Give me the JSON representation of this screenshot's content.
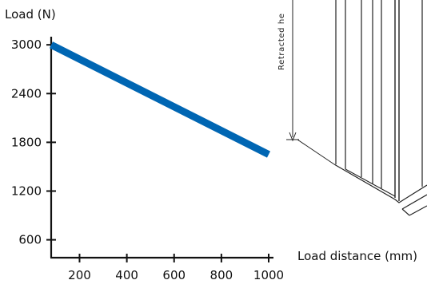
{
  "chart_data": {
    "type": "line",
    "title": "",
    "ylabel": "Load (N)",
    "xlabel": "Load distance (mm)",
    "x_ticks": [
      200,
      400,
      600,
      800,
      1000
    ],
    "y_ticks": [
      600,
      1200,
      1800,
      2400,
      3000
    ],
    "xlim": [
      80,
      1000
    ],
    "ylim": [
      380,
      3100
    ],
    "grid": false,
    "series": [
      {
        "x": [
          80,
          1000
        ],
        "y": [
          3000,
          1650
        ]
      }
    ],
    "colors": {
      "line": "#0066b3",
      "axis": "#111111"
    }
  },
  "drawing": {
    "dimension_label": "Retracted he"
  }
}
